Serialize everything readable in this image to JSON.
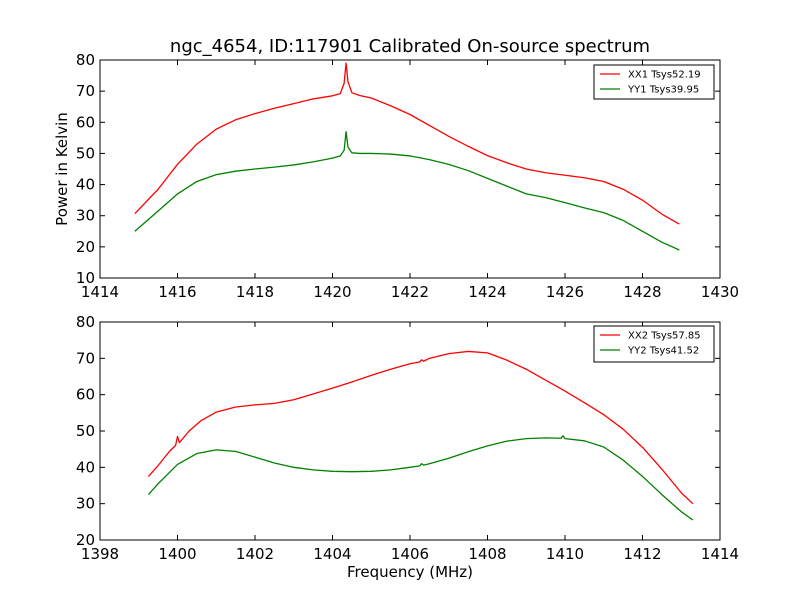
{
  "chart_data": [
    {
      "type": "line",
      "title": "ngc_4654, ID:117901 Calibrated On-source spectrum",
      "xlabel": "",
      "ylabel": "Power in Kelvin",
      "xlim": [
        1414,
        1430
      ],
      "ylim": [
        10,
        80
      ],
      "xticks": [
        "1414",
        "1416",
        "1418",
        "1420",
        "1422",
        "1424",
        "1426",
        "1428",
        "1430"
      ],
      "yticks": [
        "10",
        "20",
        "30",
        "40",
        "50",
        "60",
        "70",
        "80"
      ],
      "legend_position": "top-right",
      "series": [
        {
          "name": "XX1 Tsys52.19",
          "color": "#ff0000",
          "x": [
            1414.9,
            1415.5,
            1416.0,
            1416.5,
            1417.0,
            1417.5,
            1418.0,
            1418.5,
            1419.0,
            1419.5,
            1420.0,
            1420.2,
            1420.3,
            1420.35,
            1420.4,
            1420.5,
            1420.7,
            1421.0,
            1421.5,
            1422.0,
            1422.5,
            1423.0,
            1423.5,
            1424.0,
            1424.5,
            1425.0,
            1425.5,
            1426.0,
            1426.5,
            1427.0,
            1427.5,
            1428.0,
            1428.5,
            1428.95
          ],
          "y": [
            30.7,
            38.5,
            46.5,
            53.0,
            57.8,
            60.8,
            62.8,
            64.5,
            66.0,
            67.5,
            68.5,
            69.2,
            72.5,
            79.0,
            73.0,
            69.5,
            68.6,
            67.8,
            65.3,
            62.5,
            59.0,
            55.5,
            52.3,
            49.3,
            47.0,
            45.0,
            43.8,
            43.0,
            42.2,
            41.0,
            38.5,
            35.0,
            30.5,
            27.3
          ]
        },
        {
          "name": "YY1 Tsys39.95",
          "color": "#008000",
          "x": [
            1414.9,
            1415.5,
            1416.0,
            1416.5,
            1417.0,
            1417.5,
            1418.0,
            1418.5,
            1419.0,
            1419.5,
            1420.0,
            1420.2,
            1420.3,
            1420.35,
            1420.4,
            1420.5,
            1420.7,
            1421.0,
            1421.5,
            1422.0,
            1422.5,
            1423.0,
            1423.5,
            1424.0,
            1424.5,
            1425.0,
            1425.5,
            1426.0,
            1426.5,
            1427.0,
            1427.5,
            1428.0,
            1428.5,
            1428.95
          ],
          "y": [
            25.0,
            31.5,
            37.0,
            41.0,
            43.2,
            44.3,
            45.0,
            45.6,
            46.3,
            47.3,
            48.5,
            49.2,
            51.0,
            57.0,
            52.0,
            50.2,
            50.0,
            50.0,
            49.8,
            49.2,
            48.0,
            46.5,
            44.5,
            42.0,
            39.5,
            37.0,
            35.8,
            34.2,
            32.5,
            31.0,
            28.5,
            25.0,
            21.5,
            19.0
          ]
        }
      ]
    },
    {
      "type": "line",
      "title": "",
      "xlabel": "Frequency (MHz)",
      "ylabel": "",
      "xlim": [
        1398,
        1414
      ],
      "ylim": [
        20,
        80
      ],
      "xticks": [
        "1398",
        "1400",
        "1402",
        "1404",
        "1406",
        "1408",
        "1410",
        "1412",
        "1414"
      ],
      "yticks": [
        "20",
        "30",
        "40",
        "50",
        "60",
        "70",
        "80"
      ],
      "legend_position": "top-right",
      "series": [
        {
          "name": "XX2 Tsys57.85",
          "color": "#ff0000",
          "x": [
            1399.25,
            1399.5,
            1399.8,
            1399.95,
            1400.0,
            1400.05,
            1400.3,
            1400.6,
            1401.0,
            1401.5,
            1402.0,
            1402.5,
            1403.0,
            1403.5,
            1404.0,
            1404.5,
            1405.0,
            1405.5,
            1406.0,
            1406.25,
            1406.3,
            1406.35,
            1406.5,
            1407.0,
            1407.5,
            1408.0,
            1408.5,
            1409.0,
            1409.5,
            1410.0,
            1410.5,
            1411.0,
            1411.5,
            1412.0,
            1412.5,
            1413.0,
            1413.3
          ],
          "y": [
            37.5,
            40.5,
            44.5,
            46.0,
            48.5,
            46.8,
            50.0,
            52.8,
            55.2,
            56.6,
            57.2,
            57.6,
            58.6,
            60.2,
            61.8,
            63.5,
            65.3,
            67.0,
            68.5,
            69.0,
            69.6,
            69.2,
            70.0,
            71.3,
            71.9,
            71.5,
            69.5,
            67.0,
            64.0,
            61.0,
            57.8,
            54.5,
            50.5,
            45.5,
            39.5,
            33.0,
            30.0
          ]
        },
        {
          "name": "YY2 Tsys41.52",
          "color": "#008000",
          "x": [
            1399.25,
            1399.5,
            1400.0,
            1400.5,
            1401.0,
            1401.5,
            1402.0,
            1402.5,
            1403.0,
            1403.5,
            1404.0,
            1404.5,
            1405.0,
            1405.5,
            1406.0,
            1406.25,
            1406.3,
            1406.35,
            1406.5,
            1407.0,
            1407.5,
            1408.0,
            1408.5,
            1409.0,
            1409.5,
            1409.9,
            1409.95,
            1410.0,
            1410.5,
            1411.0,
            1411.5,
            1412.0,
            1412.5,
            1413.0,
            1413.3
          ],
          "y": [
            32.5,
            35.5,
            40.8,
            43.8,
            44.8,
            44.4,
            42.8,
            41.2,
            40.0,
            39.3,
            38.9,
            38.8,
            38.9,
            39.3,
            40.0,
            40.4,
            41.0,
            40.6,
            41.0,
            42.5,
            44.3,
            45.9,
            47.2,
            47.9,
            48.1,
            48.0,
            48.7,
            47.9,
            47.3,
            45.6,
            42.0,
            37.5,
            32.5,
            27.8,
            25.5
          ]
        }
      ]
    }
  ]
}
